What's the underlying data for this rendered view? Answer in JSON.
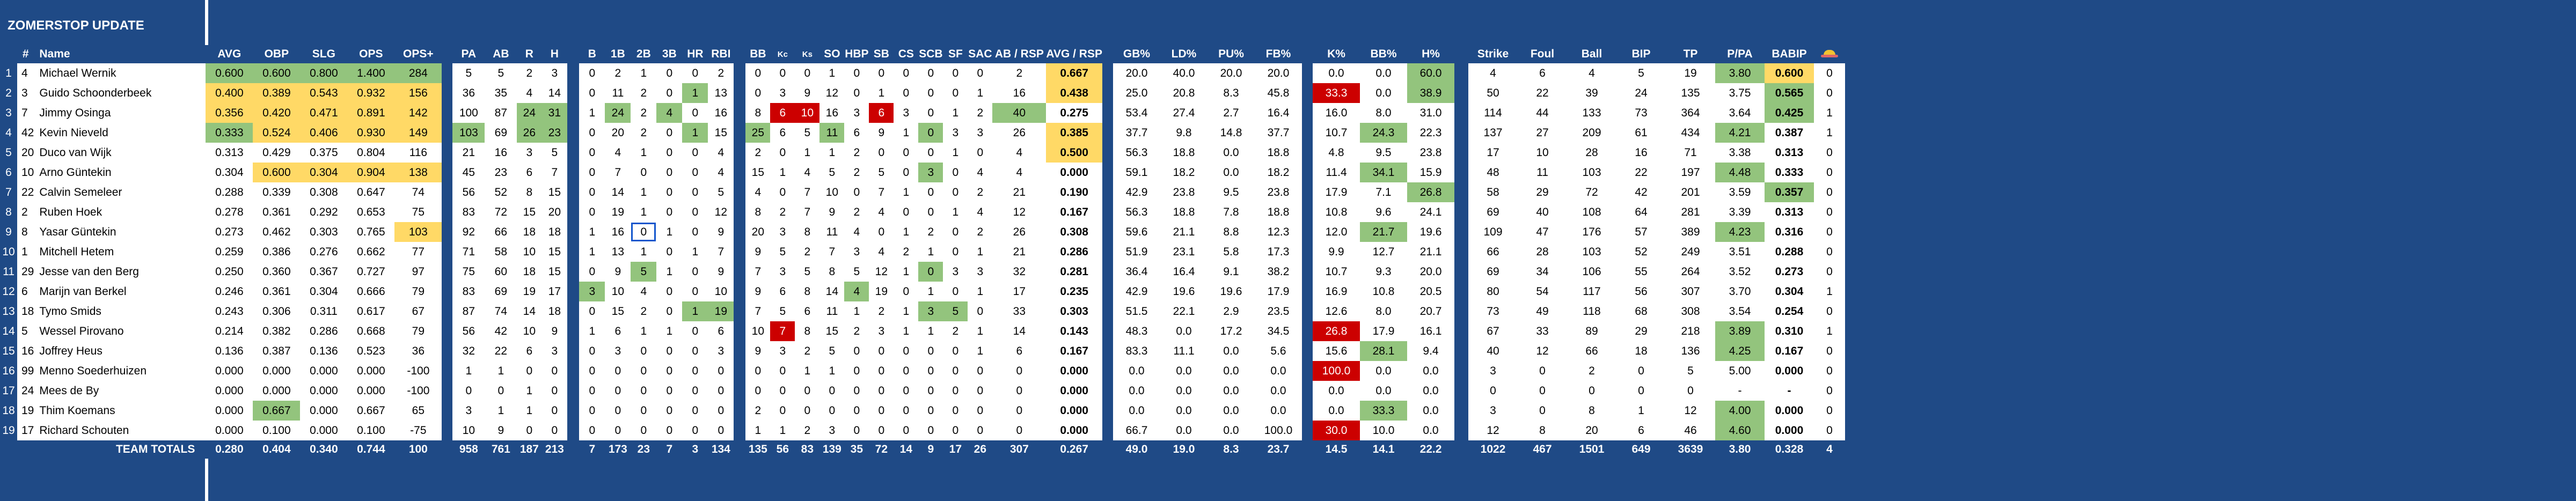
{
  "title": "ZOMERSTOP UPDATE",
  "header": {
    "row_no": "",
    "num": "#",
    "name": "Name",
    "cols": [
      "AVG",
      "OBP",
      "SLG",
      "OPS",
      "OPS+",
      "PA",
      "AB",
      "R",
      "H",
      "B",
      "1B",
      "2B",
      "3B",
      "HR",
      "RBI",
      "BB",
      "Kc",
      "Ks",
      "SO",
      "HBP",
      "SB",
      "CS",
      "SCB",
      "SF",
      "SAC",
      "AB / RSP",
      "AVG / RSP",
      "GB%",
      "LD%",
      "PU%",
      "FB%",
      "K%",
      "BB%",
      "H%",
      "Strike",
      "Foul",
      "Ball",
      "BIP",
      "TP",
      "P/PA",
      "BABIP",
      ""
    ],
    "last_icon": "cap-icon"
  },
  "rows": [
    {
      "r": "1",
      "n": "4",
      "name": "Michael Wernik",
      "v": [
        "0.600",
        "0.600",
        "0.800",
        "1.400",
        "284",
        "5",
        "5",
        "2",
        "3",
        "0",
        "2",
        "1",
        "0",
        "0",
        "2",
        "0",
        "0",
        "0",
        "1",
        "0",
        "0",
        "0",
        "0",
        "0",
        "0",
        "2",
        "0.667",
        "20.0",
        "40.0",
        "20.0",
        "20.0",
        "0.0",
        "0.0",
        "60.0",
        "4",
        "6",
        "4",
        "5",
        "19",
        "3.80",
        "0.600",
        "0"
      ]
    },
    {
      "r": "2",
      "n": "3",
      "name": "Guido Schoonderbeek",
      "v": [
        "0.400",
        "0.389",
        "0.543",
        "0.932",
        "156",
        "36",
        "35",
        "4",
        "14",
        "0",
        "11",
        "2",
        "0",
        "1",
        "13",
        "0",
        "3",
        "9",
        "12",
        "0",
        "1",
        "0",
        "0",
        "0",
        "1",
        "16",
        "0.438",
        "25.0",
        "20.8",
        "8.3",
        "45.8",
        "33.3",
        "0.0",
        "38.9",
        "50",
        "22",
        "39",
        "24",
        "135",
        "3.75",
        "0.565",
        "0"
      ]
    },
    {
      "r": "3",
      "n": "7",
      "name": "Jimmy Osinga",
      "v": [
        "0.356",
        "0.420",
        "0.471",
        "0.891",
        "142",
        "100",
        "87",
        "24",
        "31",
        "1",
        "24",
        "2",
        "4",
        "0",
        "16",
        "8",
        "6",
        "10",
        "16",
        "3",
        "6",
        "3",
        "0",
        "1",
        "2",
        "40",
        "0.275",
        "53.4",
        "27.4",
        "2.7",
        "16.4",
        "16.0",
        "8.0",
        "31.0",
        "114",
        "44",
        "133",
        "73",
        "364",
        "3.64",
        "0.425",
        "1"
      ]
    },
    {
      "r": "4",
      "n": "42",
      "name": "Kevin Nieveld",
      "v": [
        "0.333",
        "0.524",
        "0.406",
        "0.930",
        "149",
        "103",
        "69",
        "26",
        "23",
        "0",
        "20",
        "2",
        "0",
        "1",
        "15",
        "25",
        "6",
        "5",
        "11",
        "6",
        "9",
        "1",
        "0",
        "3",
        "3",
        "26",
        "0.385",
        "37.7",
        "9.8",
        "14.8",
        "37.7",
        "10.7",
        "24.3",
        "22.3",
        "137",
        "27",
        "209",
        "61",
        "434",
        "4.21",
        "0.387",
        "1"
      ]
    },
    {
      "r": "5",
      "n": "20",
      "name": "Duco van Wijk",
      "v": [
        "0.313",
        "0.429",
        "0.375",
        "0.804",
        "116",
        "21",
        "16",
        "3",
        "5",
        "0",
        "4",
        "1",
        "0",
        "0",
        "4",
        "2",
        "0",
        "1",
        "1",
        "2",
        "0",
        "0",
        "0",
        "1",
        "0",
        "4",
        "0.500",
        "56.3",
        "18.8",
        "0.0",
        "18.8",
        "4.8",
        "9.5",
        "23.8",
        "17",
        "10",
        "28",
        "16",
        "71",
        "3.38",
        "0.313",
        "0"
      ]
    },
    {
      "r": "6",
      "n": "10",
      "name": "Arno Güntekin",
      "v": [
        "0.304",
        "0.600",
        "0.304",
        "0.904",
        "138",
        "45",
        "23",
        "6",
        "7",
        "0",
        "7",
        "0",
        "0",
        "0",
        "4",
        "15",
        "1",
        "4",
        "5",
        "2",
        "5",
        "0",
        "3",
        "0",
        "4",
        "4",
        "0.000",
        "59.1",
        "18.2",
        "0.0",
        "18.2",
        "11.4",
        "34.1",
        "15.9",
        "48",
        "11",
        "103",
        "22",
        "197",
        "4.48",
        "0.333",
        "0"
      ]
    },
    {
      "r": "7",
      "n": "22",
      "name": "Calvin Semeleer",
      "v": [
        "0.288",
        "0.339",
        "0.308",
        "0.647",
        "74",
        "56",
        "52",
        "8",
        "15",
        "0",
        "14",
        "1",
        "0",
        "0",
        "5",
        "4",
        "0",
        "7",
        "10",
        "0",
        "7",
        "1",
        "0",
        "0",
        "2",
        "21",
        "0.190",
        "42.9",
        "23.8",
        "9.5",
        "23.8",
        "17.9",
        "7.1",
        "26.8",
        "58",
        "29",
        "72",
        "42",
        "201",
        "3.59",
        "0.357",
        "0"
      ]
    },
    {
      "r": "8",
      "n": "2",
      "name": "Ruben Hoek",
      "v": [
        "0.278",
        "0.361",
        "0.292",
        "0.653",
        "75",
        "83",
        "72",
        "15",
        "20",
        "0",
        "19",
        "1",
        "0",
        "0",
        "12",
        "8",
        "2",
        "7",
        "9",
        "2",
        "4",
        "0",
        "0",
        "1",
        "4",
        "12",
        "0.167",
        "56.3",
        "18.8",
        "7.8",
        "18.8",
        "10.8",
        "9.6",
        "24.1",
        "69",
        "40",
        "108",
        "64",
        "281",
        "3.39",
        "0.313",
        "0"
      ]
    },
    {
      "r": "9",
      "n": "8",
      "name": "Yasar Güntekin",
      "v": [
        "0.273",
        "0.462",
        "0.303",
        "0.765",
        "103",
        "92",
        "66",
        "18",
        "18",
        "1",
        "16",
        "0",
        "1",
        "0",
        "9",
        "20",
        "3",
        "8",
        "11",
        "4",
        "0",
        "1",
        "2",
        "0",
        "2",
        "26",
        "0.308",
        "59.6",
        "21.1",
        "8.8",
        "12.3",
        "12.0",
        "21.7",
        "19.6",
        "109",
        "47",
        "176",
        "57",
        "389",
        "4.23",
        "0.316",
        "0"
      ]
    },
    {
      "r": "10",
      "n": "1",
      "name": "Mitchell Hetem",
      "v": [
        "0.259",
        "0.386",
        "0.276",
        "0.662",
        "77",
        "71",
        "58",
        "10",
        "15",
        "1",
        "13",
        "1",
        "0",
        "1",
        "7",
        "9",
        "5",
        "2",
        "7",
        "3",
        "4",
        "2",
        "1",
        "0",
        "1",
        "21",
        "0.286",
        "51.9",
        "23.1",
        "5.8",
        "17.3",
        "9.9",
        "12.7",
        "21.1",
        "66",
        "28",
        "103",
        "52",
        "249",
        "3.51",
        "0.288",
        "0"
      ]
    },
    {
      "r": "11",
      "n": "29",
      "name": "Jesse van den Berg",
      "v": [
        "0.250",
        "0.360",
        "0.367",
        "0.727",
        "97",
        "75",
        "60",
        "18",
        "15",
        "0",
        "9",
        "5",
        "1",
        "0",
        "9",
        "7",
        "3",
        "5",
        "8",
        "5",
        "12",
        "1",
        "0",
        "3",
        "3",
        "32",
        "0.281",
        "36.4",
        "16.4",
        "9.1",
        "38.2",
        "10.7",
        "9.3",
        "20.0",
        "69",
        "34",
        "106",
        "55",
        "264",
        "3.52",
        "0.273",
        "0"
      ]
    },
    {
      "r": "12",
      "n": "6",
      "name": "Marijn van Berkel",
      "v": [
        "0.246",
        "0.361",
        "0.304",
        "0.666",
        "79",
        "83",
        "69",
        "19",
        "17",
        "3",
        "10",
        "4",
        "0",
        "0",
        "10",
        "9",
        "6",
        "8",
        "14",
        "4",
        "19",
        "0",
        "1",
        "0",
        "1",
        "17",
        "0.235",
        "42.9",
        "19.6",
        "19.6",
        "17.9",
        "16.9",
        "10.8",
        "20.5",
        "80",
        "54",
        "117",
        "56",
        "307",
        "3.70",
        "0.304",
        "1"
      ]
    },
    {
      "r": "13",
      "n": "18",
      "name": "Tymo Smids",
      "v": [
        "0.243",
        "0.306",
        "0.311",
        "0.617",
        "67",
        "87",
        "74",
        "14",
        "18",
        "0",
        "15",
        "2",
        "0",
        "1",
        "19",
        "7",
        "5",
        "6",
        "11",
        "1",
        "2",
        "1",
        "3",
        "5",
        "0",
        "33",
        "0.303",
        "51.5",
        "22.1",
        "2.9",
        "23.5",
        "12.6",
        "8.0",
        "20.7",
        "73",
        "49",
        "118",
        "68",
        "308",
        "3.54",
        "0.254",
        "0"
      ]
    },
    {
      "r": "14",
      "n": "5",
      "name": "Wessel Pirovano",
      "v": [
        "0.214",
        "0.382",
        "0.286",
        "0.668",
        "79",
        "56",
        "42",
        "10",
        "9",
        "1",
        "6",
        "1",
        "1",
        "0",
        "6",
        "10",
        "7",
        "8",
        "15",
        "2",
        "3",
        "1",
        "1",
        "2",
        "1",
        "14",
        "0.143",
        "48.3",
        "0.0",
        "17.2",
        "34.5",
        "26.8",
        "17.9",
        "16.1",
        "67",
        "33",
        "89",
        "29",
        "218",
        "3.89",
        "0.310",
        "1"
      ]
    },
    {
      "r": "15",
      "n": "16",
      "name": "Joffrey Heus",
      "v": [
        "0.136",
        "0.387",
        "0.136",
        "0.523",
        "36",
        "32",
        "22",
        "6",
        "3",
        "0",
        "3",
        "0",
        "0",
        "0",
        "3",
        "9",
        "3",
        "2",
        "5",
        "0",
        "0",
        "0",
        "0",
        "0",
        "1",
        "6",
        "0.167",
        "83.3",
        "11.1",
        "0.0",
        "5.6",
        "15.6",
        "28.1",
        "9.4",
        "40",
        "12",
        "66",
        "18",
        "136",
        "4.25",
        "0.167",
        "0"
      ]
    },
    {
      "r": "16",
      "n": "99",
      "name": "Menno Soederhuizen",
      "v": [
        "0.000",
        "0.000",
        "0.000",
        "0.000",
        "-100",
        "1",
        "1",
        "0",
        "0",
        "0",
        "0",
        "0",
        "0",
        "0",
        "0",
        "0",
        "0",
        "1",
        "1",
        "0",
        "0",
        "0",
        "0",
        "0",
        "0",
        "0",
        "0.000",
        "0.0",
        "0.0",
        "0.0",
        "0.0",
        "100.0",
        "0.0",
        "0.0",
        "3",
        "0",
        "2",
        "0",
        "5",
        "5.00",
        "0.000",
        "0"
      ]
    },
    {
      "r": "17",
      "n": "24",
      "name": "Mees de By",
      "v": [
        "0.000",
        "0.000",
        "0.000",
        "0.000",
        "-100",
        "0",
        "0",
        "1",
        "0",
        "0",
        "0",
        "0",
        "0",
        "0",
        "0",
        "0",
        "0",
        "0",
        "0",
        "0",
        "0",
        "0",
        "0",
        "0",
        "0",
        "0",
        "0.000",
        "0.0",
        "0.0",
        "0.0",
        "0.0",
        "0.0",
        "0.0",
        "0.0",
        "0",
        "0",
        "0",
        "0",
        "0",
        "-",
        "-",
        "0"
      ]
    },
    {
      "r": "18",
      "n": "19",
      "name": "Thim Koemans",
      "v": [
        "0.000",
        "0.667",
        "0.000",
        "0.667",
        "65",
        "3",
        "1",
        "1",
        "0",
        "0",
        "0",
        "0",
        "0",
        "0",
        "0",
        "2",
        "0",
        "0",
        "0",
        "0",
        "0",
        "0",
        "0",
        "0",
        "0",
        "0",
        "0.000",
        "0.0",
        "0.0",
        "0.0",
        "0.0",
        "0.0",
        "33.3",
        "0.0",
        "3",
        "0",
        "8",
        "1",
        "12",
        "4.00",
        "0.000",
        "0"
      ]
    },
    {
      "r": "19",
      "n": "17",
      "name": "Richard Schouten",
      "v": [
        "0.000",
        "0.100",
        "0.000",
        "0.100",
        "-75",
        "10",
        "9",
        "0",
        "0",
        "0",
        "0",
        "0",
        "0",
        "0",
        "0",
        "1",
        "1",
        "2",
        "3",
        "0",
        "0",
        "0",
        "0",
        "0",
        "0",
        "0",
        "0.000",
        "66.7",
        "0.0",
        "0.0",
        "100.0",
        "30.0",
        "10.0",
        "0.0",
        "12",
        "8",
        "20",
        "6",
        "46",
        "4.60",
        "0.000",
        "0"
      ]
    }
  ],
  "totals": {
    "label": "TEAM TOTALS",
    "v": [
      "0.280",
      "0.404",
      "0.340",
      "0.744",
      "100",
      "958",
      "761",
      "187",
      "213",
      "7",
      "173",
      "23",
      "7",
      "3",
      "134",
      "135",
      "56",
      "83",
      "139",
      "35",
      "72",
      "14",
      "9",
      "17",
      "26",
      "307",
      "0.267",
      "49.0",
      "19.0",
      "8.3",
      "23.7",
      "14.5",
      "14.1",
      "22.2",
      "1022",
      "467",
      "1501",
      "649",
      "3639",
      "3.80",
      "0.328",
      "4"
    ]
  },
  "colors": {
    "background": "#1f4a86",
    "green": "#93c47d",
    "yellow": "#ffd966",
    "red": "#cc0000",
    "selection": "#1155cc"
  }
}
